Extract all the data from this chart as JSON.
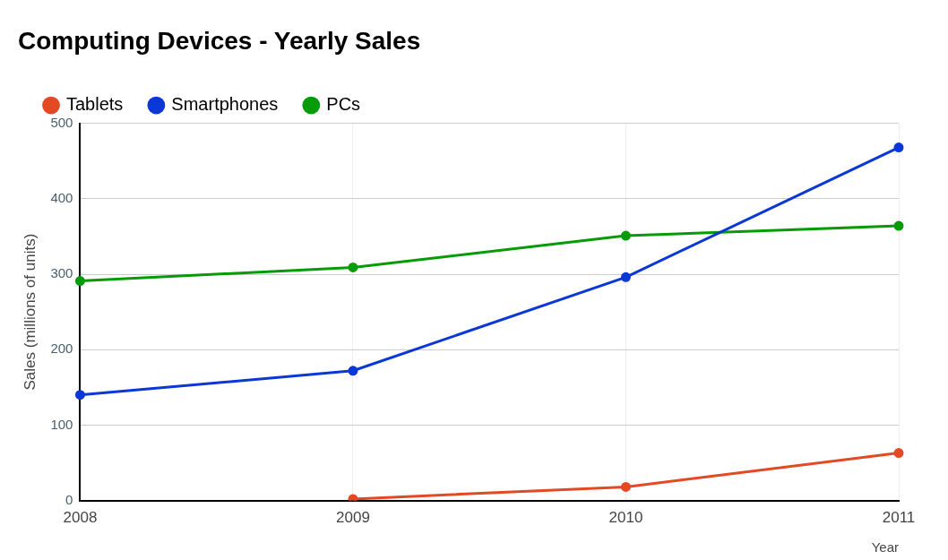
{
  "chart_data": {
    "type": "line",
    "title": "Computing Devices - Yearly Sales",
    "xlabel": "Year",
    "ylabel": "Sales (millions of units)",
    "categories": [
      "2008",
      "2009",
      "2010",
      "2011"
    ],
    "series": [
      {
        "name": "Tablets",
        "color": "#e34a24",
        "values": [
          null,
          2,
          18,
          63
        ]
      },
      {
        "name": "Smartphones",
        "color": "#0a37d6",
        "values": [
          140,
          172,
          296,
          468
        ]
      },
      {
        "name": "PCs",
        "color": "#089b08",
        "values": [
          291,
          309,
          351,
          364
        ]
      }
    ],
    "ylim": [
      0,
      500
    ],
    "yticks": [
      0,
      100,
      200,
      300,
      400,
      500
    ],
    "grid": true,
    "legend": "top left",
    "marker": "circle",
    "line_style": "solid"
  }
}
